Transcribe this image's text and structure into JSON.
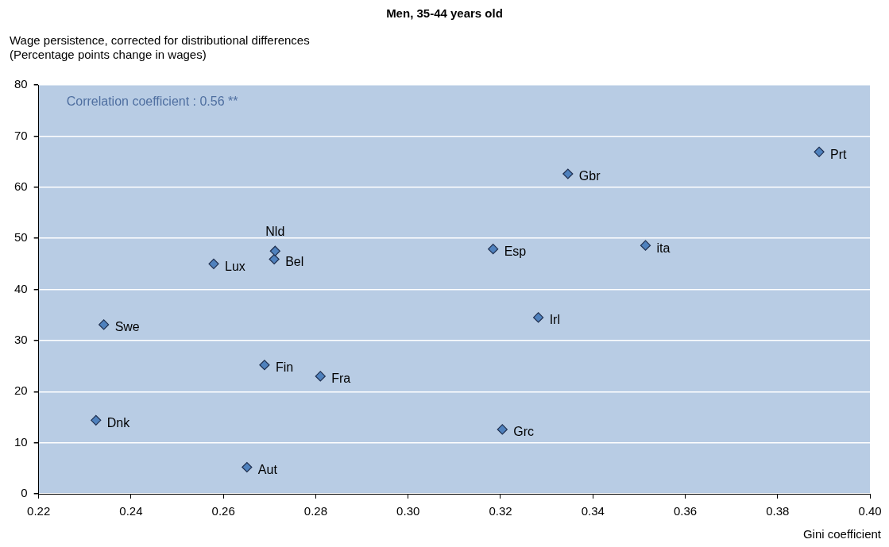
{
  "chart_data": {
    "type": "scatter",
    "title": "Men, 35-44 years old",
    "ylabel": "Wage persistence, corrected for distributional differences\n(Percentage points change in wages)",
    "xlabel": "Gini coefficient",
    "x": [
      0.2324,
      0.2341,
      0.2579,
      0.2651,
      0.2689,
      0.271,
      0.2712,
      0.281,
      0.3184,
      0.3204,
      0.3282,
      0.3346,
      0.3514,
      0.389
    ],
    "values": [
      14.4,
      33.1,
      45.0,
      5.2,
      25.2,
      45.9,
      47.5,
      23.0,
      47.9,
      12.6,
      34.5,
      62.6,
      48.6,
      66.9
    ],
    "color": "#4f81bd",
    "marker": "diamond",
    "xlim": [
      0.22,
      0.4
    ],
    "xticks": [
      {
        "value": 0.22,
        "label": "0.22"
      },
      {
        "value": 0.24,
        "label": "0.24"
      },
      {
        "value": 0.26,
        "label": "0.26"
      },
      {
        "value": 0.28,
        "label": "0.28"
      },
      {
        "value": 0.3,
        "label": "0.30"
      },
      {
        "value": 0.32,
        "label": "0.32"
      },
      {
        "value": 0.34,
        "label": "0.34"
      },
      {
        "value": 0.36,
        "label": "0.36"
      },
      {
        "value": 0.38,
        "label": "0.38"
      },
      {
        "value": 0.4,
        "label": "0.40"
      }
    ],
    "ylim": [
      0,
      80
    ],
    "yticks": [
      0,
      10,
      20,
      30,
      40,
      50,
      60,
      70,
      80
    ],
    "grid": "y",
    "annotations": [
      "Correlation coefficient : 0.56 **",
      {
        "text": "Dnk",
        "x": 0.2324,
        "y": 14.4
      },
      {
        "text": "Swe",
        "x": 0.2341,
        "y": 33.1
      },
      {
        "text": "Lux",
        "x": 0.2579,
        "y": 45.0
      },
      {
        "text": "Aut",
        "x": 0.2651,
        "y": 5.2
      },
      {
        "text": "Fin",
        "x": 0.2689,
        "y": 25.2
      },
      {
        "text": "Bel",
        "x": 0.271,
        "y": 45.9
      },
      {
        "text": "Nld",
        "x": 0.2712,
        "y": 47.5
      },
      {
        "text": "Fra",
        "x": 0.281,
        "y": 23.0
      },
      {
        "text": "Esp",
        "x": 0.3184,
        "y": 47.9
      },
      {
        "text": "Grc",
        "x": 0.3204,
        "y": 12.6
      },
      {
        "text": "Irl",
        "x": 0.3282,
        "y": 34.5
      },
      {
        "text": "Gbr",
        "x": 0.3346,
        "y": 62.6
      },
      {
        "text": "ita",
        "x": 0.3514,
        "y": 48.6
      },
      {
        "text": "Prt",
        "x": 0.389,
        "y": 66.9
      }
    ]
  }
}
